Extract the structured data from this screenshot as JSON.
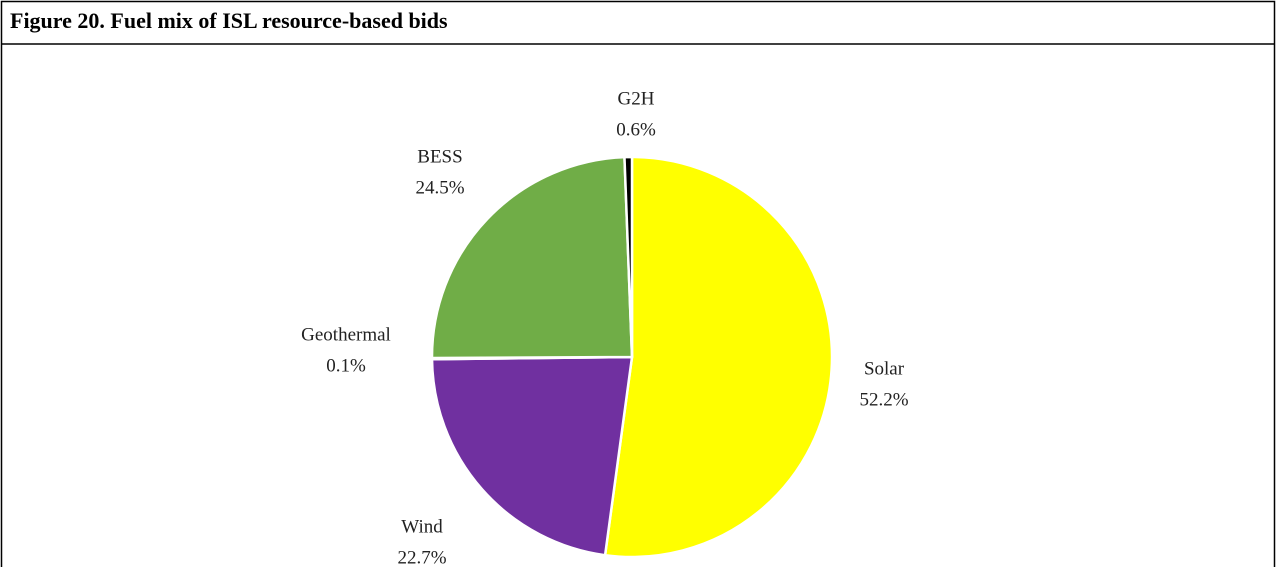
{
  "chart_data": {
    "type": "pie",
    "title": "Figure 20. Fuel mix of ISL resource-based bids",
    "categories": [
      "Solar",
      "Wind",
      "Geothermal",
      "BESS",
      "G2H"
    ],
    "values": [
      52.2,
      22.7,
      0.1,
      24.5,
      0.6
    ],
    "value_labels": [
      "52.2%",
      "22.7%",
      "0.1%",
      "24.5%",
      "0.6%"
    ],
    "colors": [
      "#ffff00",
      "#7030a0",
      "#a5a5a5",
      "#70ad47",
      "#000000"
    ]
  }
}
